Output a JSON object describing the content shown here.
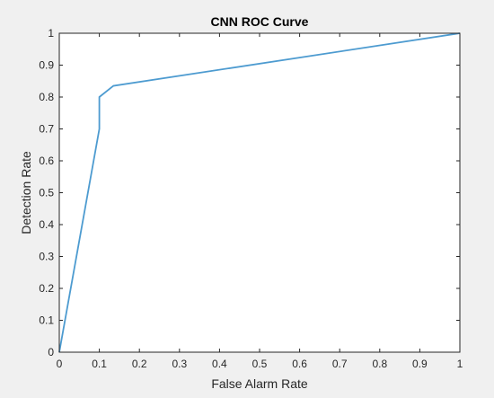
{
  "chart_data": {
    "type": "line",
    "title": "CNN ROC Curve",
    "xlabel": "False Alarm Rate",
    "ylabel": "Detection Rate",
    "xlim": [
      0,
      1
    ],
    "ylim": [
      0,
      1
    ],
    "x_ticks": [
      "0",
      "0.1",
      "0.2",
      "0.3",
      "0.4",
      "0.5",
      "0.6",
      "0.7",
      "0.8",
      "0.9",
      "1"
    ],
    "y_ticks": [
      "0",
      "0.1",
      "0.2",
      "0.3",
      "0.4",
      "0.5",
      "0.6",
      "0.7",
      "0.8",
      "0.9",
      "1"
    ],
    "grid": false,
    "series": [
      {
        "color": "#4d9bd0",
        "x": [
          0,
          0.1,
          0.1,
          0.135,
          1
        ],
        "y": [
          0,
          0.7,
          0.8,
          0.835,
          1
        ]
      }
    ]
  }
}
